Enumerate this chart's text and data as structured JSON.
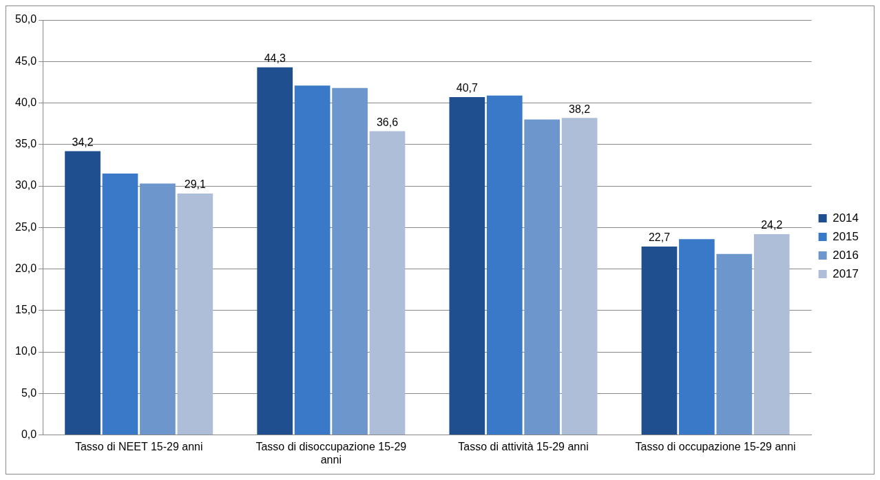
{
  "chart_data": {
    "type": "bar",
    "categories": [
      "Tasso di NEET 15-29 anni",
      "Tasso di disoccupazione 15-29 anni",
      "Tasso di attività 15-29 anni",
      "Tasso di occupazione 15-29 anni"
    ],
    "series": [
      {
        "name": "2014",
        "color": "#1f4f8f",
        "values": [
          34.2,
          44.3,
          40.7,
          22.7
        ],
        "value_labels": [
          "34,2",
          "44,3",
          "40,7",
          "22,7"
        ]
      },
      {
        "name": "2015",
        "color": "#3a79c8",
        "values": [
          31.5,
          42.1,
          40.9,
          23.6
        ],
        "value_labels": [
          null,
          null,
          null,
          null
        ]
      },
      {
        "name": "2016",
        "color": "#6c96cc",
        "values": [
          30.3,
          41.8,
          38.0,
          21.8
        ],
        "value_labels": [
          null,
          null,
          null,
          null
        ]
      },
      {
        "name": "2017",
        "color": "#aebdd8",
        "values": [
          29.1,
          36.6,
          38.2,
          24.2
        ],
        "value_labels": [
          "29,1",
          "36,6",
          "38,2",
          "24,2"
        ]
      }
    ],
    "ylim": [
      0,
      50
    ],
    "yticks": [
      {
        "value": 0,
        "label": "0,0"
      },
      {
        "value": 5,
        "label": "5,0"
      },
      {
        "value": 10,
        "label": "10,0"
      },
      {
        "value": 15,
        "label": "15,0"
      },
      {
        "value": 20,
        "label": "20,0"
      },
      {
        "value": 25,
        "label": "25,0"
      },
      {
        "value": 30,
        "label": "30,0"
      },
      {
        "value": 35,
        "label": "35,0"
      },
      {
        "value": 40,
        "label": "40,0"
      },
      {
        "value": 45,
        "label": "45,0"
      },
      {
        "value": 50,
        "label": "50,0"
      }
    ],
    "grid": "y",
    "legend": "right"
  }
}
